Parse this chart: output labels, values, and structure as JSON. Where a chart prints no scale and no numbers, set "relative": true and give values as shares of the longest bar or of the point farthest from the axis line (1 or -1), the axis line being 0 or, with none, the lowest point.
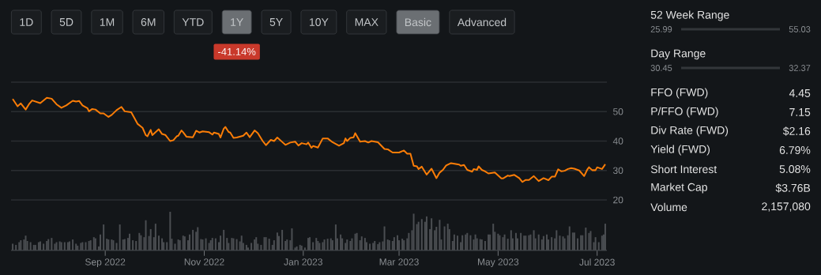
{
  "chart_data": [
    {
      "type": "line",
      "color": "#fb7d07",
      "grid": "y",
      "tick_labels": "y",
      "subtitle": "-41.14%",
      "annotations": [
        "1D",
        "5D",
        "1M",
        "6M",
        "YTD",
        "1Y",
        "5Y",
        "10Y",
        "MAX",
        "Basic",
        "Advanced"
      ],
      "xlim": [
        "2022-07-05",
        "2023-07-07"
      ],
      "ylim": [
        20,
        60
      ],
      "yticks": [
        20,
        30,
        40,
        50,
        {
          "value": 60,
          "label": null
        }
      ],
      "x": [
        "2022-07-06",
        "2022-07-09",
        "2022-07-11",
        "2022-07-14",
        "2022-07-16",
        "2022-07-18",
        "2022-07-23",
        "2022-07-27",
        "2022-07-30",
        "2022-08-02",
        "2022-08-05",
        "2022-08-08",
        "2022-08-12",
        "2022-08-14",
        "2022-08-16",
        "2022-08-18",
        "2022-08-21",
        "2022-08-22",
        "2022-08-24",
        "2022-08-26",
        "2022-08-29",
        "2022-08-31",
        "2022-09-03",
        "2022-09-05",
        "2022-09-08",
        "2022-09-11",
        "2022-09-13",
        "2022-09-17",
        "2022-09-21",
        "2022-09-24",
        "2022-09-26",
        "2022-09-27",
        "2022-09-29",
        "2022-09-30",
        "2022-10-04",
        "2022-10-06",
        "2022-10-08",
        "2022-10-11",
        "2022-10-13",
        "2022-10-15",
        "2022-10-16",
        "2022-10-18",
        "2022-10-19",
        "2022-10-21",
        "2022-10-25",
        "2022-10-27",
        "2022-10-29",
        "2022-10-31",
        "2022-11-04",
        "2022-11-06",
        "2022-11-07",
        "2022-11-10",
        "2022-11-11",
        "2022-11-13",
        "2022-11-14",
        "2022-11-16",
        "2022-11-17",
        "2022-11-19",
        "2022-11-21",
        "2022-11-23",
        "2022-11-25",
        "2022-11-27",
        "2022-11-29",
        "2022-12-02",
        "2022-12-04",
        "2022-12-07",
        "2022-12-09",
        "2022-12-12",
        "2022-12-14",
        "2022-12-16",
        "2022-12-19",
        "2022-12-21",
        "2022-12-24",
        "2022-12-27",
        "2022-12-29",
        "2022-12-31",
        "2023-01-03",
        "2023-01-04",
        "2023-01-06",
        "2023-01-07",
        "2023-01-09",
        "2023-01-10",
        "2023-01-13",
        "2023-01-16",
        "2023-01-19",
        "2023-01-23",
        "2023-01-26",
        "2023-01-27",
        "2023-01-28",
        "2023-01-30",
        "2023-02-01",
        "2023-02-02",
        "2023-02-05",
        "2023-02-08",
        "2023-02-10",
        "2023-02-12",
        "2023-02-16",
        "2023-02-20",
        "2023-02-22",
        "2023-02-25",
        "2023-03-01",
        "2023-03-04",
        "2023-03-06",
        "2023-03-08",
        "2023-03-10",
        "2023-03-12",
        "2023-03-13",
        "2023-03-15",
        "2023-03-18",
        "2023-03-21",
        "2023-03-24",
        "2023-03-26",
        "2023-03-28",
        "2023-03-30",
        "2023-04-02",
        "2023-04-07",
        "2023-04-08",
        "2023-04-10",
        "2023-04-12",
        "2023-04-15",
        "2023-04-16",
        "2023-04-18",
        "2023-04-19",
        "2023-04-21",
        "2023-04-23",
        "2023-04-25",
        "2023-04-29",
        "2023-05-03",
        "2023-05-04",
        "2023-05-07",
        "2023-05-08",
        "2023-05-11",
        "2023-05-14",
        "2023-05-16",
        "2023-05-18",
        "2023-05-20",
        "2023-05-23",
        "2023-05-26",
        "2023-05-29",
        "2023-06-01",
        "2023-06-03",
        "2023-06-05",
        "2023-06-07",
        "2023-06-09",
        "2023-06-11",
        "2023-06-13",
        "2023-06-15",
        "2023-06-17",
        "2023-06-20",
        "2023-06-23",
        "2023-06-25",
        "2023-06-26",
        "2023-06-28",
        "2023-06-30",
        "2023-07-01",
        "2023-07-04",
        "2023-07-06"
      ],
      "values": [
        54.3,
        51.8,
        52.8,
        50.7,
        52.5,
        53.8,
        52.9,
        54.7,
        54.4,
        52.5,
        51.3,
        52.1,
        53.7,
        53.4,
        53.6,
        52.1,
        51.2,
        50.1,
        50.9,
        50.7,
        49.4,
        49.4,
        48.2,
        48.9,
        50.5,
        51.6,
        50.1,
        49.8,
        45.8,
        44.5,
        42.0,
        41.6,
        43.8,
        42.0,
        44.0,
        42.4,
        42.1,
        40.0,
        40.3,
        41.6,
        41.8,
        43.6,
        43.0,
        41.5,
        41.3,
        43.5,
        42.9,
        43.3,
        43.0,
        42.2,
        42.9,
        42.4,
        41.2,
        44.2,
        44.8,
        43.1,
        42.9,
        41.1,
        41.2,
        41.5,
        41.8,
        42.9,
        41.3,
        43.6,
        42.7,
        40.0,
        38.6,
        40.4,
        40.0,
        41.2,
        39.7,
        38.7,
        39.5,
        39.8,
        38.5,
        39.3,
        38.9,
        39.5,
        37.7,
        38.3,
        38.0,
        37.8,
        40.9,
        40.9,
        39.6,
        38.4,
        39.3,
        40.9,
        40.0,
        41.1,
        41.3,
        42.7,
        39.8,
        40.0,
        39.5,
        40.0,
        39.6,
        37.3,
        37.2,
        36.1,
        36.1,
        36.8,
        35.7,
        35.7,
        31.6,
        31.4,
        30.5,
        31.3,
        28.6,
        30.6,
        27.4,
        29.3,
        30.2,
        31.7,
        32.5,
        32.0,
        31.6,
        31.9,
        30.2,
        29.6,
        30.5,
        30.2,
        31.4,
        30.2,
        29.7,
        29.0,
        29.3,
        27.3,
        27.3,
        28.3,
        28.1,
        28.5,
        27.4,
        26.1,
        26.8,
        26.8,
        28.1,
        26.4,
        27.4,
        26.7,
        27.9,
        27.9,
        30.4,
        29.7,
        29.9,
        30.5,
        30.8,
        30.6,
        30.0,
        28.1,
        30.4,
        31.1,
        30.1,
        30.1,
        31.1,
        30.5,
        32.1
      ]
    },
    {
      "type": "bar",
      "color": "#4b4e52",
      "relative": true,
      "tick_labels": "x",
      "xlim": [
        "2022-07-05",
        "2023-07-07"
      ],
      "xticks": [
        {
          "value": "2022-09-01",
          "label": "Sep 2022"
        },
        {
          "value": "2022-11-01",
          "label": "Nov 2022"
        },
        {
          "value": "2023-01-01",
          "label": "Jan 2023"
        },
        {
          "value": "2023-03-01",
          "label": "Mar 2023"
        },
        {
          "value": "2023-05-01",
          "label": "May 2023"
        },
        {
          "value": "2023-07-01",
          "label": "Jul 2023"
        }
      ],
      "x": [
        "2022-07-06",
        "2022-07-08",
        "2022-07-10",
        "2022-07-11",
        "2022-07-13",
        "2022-07-14",
        "2022-07-15",
        "2022-07-17",
        "2022-07-19",
        "2022-07-20",
        "2022-07-22",
        "2022-07-23",
        "2022-07-25",
        "2022-07-27",
        "2022-07-28",
        "2022-07-30",
        "2022-08-01",
        "2022-08-02",
        "2022-08-04",
        "2022-08-05",
        "2022-08-07",
        "2022-08-09",
        "2022-08-10",
        "2022-08-12",
        "2022-08-14",
        "2022-08-15",
        "2022-08-17",
        "2022-08-18",
        "2022-08-20",
        "2022-08-22",
        "2022-08-23",
        "2022-08-25",
        "2022-08-26",
        "2022-08-28",
        "2022-08-29",
        "2022-08-31",
        "2022-09-02",
        "2022-09-03",
        "2022-09-05",
        "2022-09-06",
        "2022-09-08",
        "2022-09-10",
        "2022-09-12",
        "2022-09-13",
        "2022-09-15",
        "2022-09-16",
        "2022-09-18",
        "2022-09-20",
        "2022-09-22",
        "2022-09-23",
        "2022-09-25",
        "2022-09-26",
        "2022-09-28",
        "2022-09-29",
        "2022-10-01",
        "2022-10-02",
        "2022-10-04",
        "2022-10-06",
        "2022-10-07",
        "2022-10-09",
        "2022-10-11",
        "2022-10-12",
        "2022-10-14",
        "2022-10-16",
        "2022-10-17",
        "2022-10-19",
        "2022-10-20",
        "2022-10-22",
        "2022-10-23",
        "2022-10-25",
        "2022-10-27",
        "2022-10-28",
        "2022-10-30",
        "2022-10-31",
        "2022-11-02",
        "2022-11-04",
        "2022-11-05",
        "2022-11-06",
        "2022-11-08",
        "2022-11-10",
        "2022-11-11",
        "2022-11-13",
        "2022-11-15",
        "2022-11-16",
        "2022-11-18",
        "2022-11-19",
        "2022-11-21",
        "2022-11-23",
        "2022-11-24",
        "2022-11-25",
        "2022-11-27",
        "2022-11-28",
        "2022-11-30",
        "2022-12-02",
        "2022-12-03",
        "2022-12-04",
        "2022-12-06",
        "2022-12-08",
        "2022-12-09",
        "2022-12-11",
        "2022-12-13",
        "2022-12-14",
        "2022-12-16",
        "2022-12-17",
        "2022-12-19",
        "2022-12-21",
        "2022-12-22",
        "2022-12-24",
        "2022-12-25",
        "2022-12-27",
        "2022-12-28",
        "2022-12-30",
        "2022-12-31",
        "2023-01-02",
        "2023-01-04",
        "2023-01-05",
        "2023-01-07",
        "2023-01-09",
        "2023-01-10",
        "2023-01-11",
        "2023-01-13",
        "2023-01-14",
        "2023-01-16",
        "2023-01-18",
        "2023-01-19",
        "2023-01-21",
        "2023-01-22",
        "2023-01-24",
        "2023-01-25",
        "2023-01-27",
        "2023-01-28",
        "2023-01-30",
        "2023-01-31",
        "2023-02-02",
        "2023-02-03",
        "2023-02-05",
        "2023-02-06",
        "2023-02-08",
        "2023-02-09",
        "2023-02-11",
        "2023-02-13",
        "2023-02-14",
        "2023-02-16",
        "2023-02-17",
        "2023-02-19",
        "2023-02-20",
        "2023-02-22",
        "2023-02-23",
        "2023-02-25",
        "2023-02-26",
        "2023-02-28",
        "2023-03-01",
        "2023-03-03",
        "2023-03-04",
        "2023-03-06",
        "2023-03-07",
        "2023-03-09",
        "2023-03-10",
        "2023-03-12",
        "2023-03-13",
        "2023-03-15",
        "2023-03-17",
        "2023-03-18",
        "2023-03-20",
        "2023-03-21",
        "2023-03-23",
        "2023-03-24",
        "2023-03-26",
        "2023-03-27",
        "2023-03-29",
        "2023-03-31",
        "2023-04-01",
        "2023-04-03",
        "2023-04-04",
        "2023-04-06",
        "2023-04-08",
        "2023-04-09",
        "2023-04-11",
        "2023-04-12",
        "2023-04-14",
        "2023-04-16",
        "2023-04-17",
        "2023-04-18",
        "2023-04-20",
        "2023-04-21",
        "2023-04-23",
        "2023-04-25",
        "2023-04-26",
        "2023-04-28",
        "2023-04-29",
        "2023-05-01",
        "2023-05-02",
        "2023-05-04",
        "2023-05-05",
        "2023-05-07",
        "2023-05-09",
        "2023-05-10",
        "2023-05-12",
        "2023-05-13",
        "2023-05-15",
        "2023-05-17",
        "2023-05-18",
        "2023-05-20",
        "2023-05-21",
        "2023-05-23",
        "2023-05-24",
        "2023-05-26",
        "2023-05-28",
        "2023-05-29",
        "2023-05-31",
        "2023-06-01",
        "2023-06-03",
        "2023-06-05",
        "2023-06-06",
        "2023-06-08",
        "2023-06-10",
        "2023-06-11",
        "2023-06-13",
        "2023-06-14",
        "2023-06-16",
        "2023-06-17",
        "2023-06-19",
        "2023-06-21",
        "2023-06-22",
        "2023-06-24",
        "2023-06-26",
        "2023-06-27",
        "2023-06-29",
        "2023-06-30",
        "2023-07-02",
        "2023-07-04",
        "2023-07-05",
        "2023-07-06"
      ],
      "values": [
        0.17,
        0.14,
        0.21,
        0.26,
        0.28,
        0.38,
        0.24,
        0.21,
        0.14,
        0.14,
        0.21,
        0.23,
        0.17,
        0.24,
        0.29,
        0.32,
        0.17,
        0.21,
        0.23,
        0.21,
        0.21,
        0.21,
        0.23,
        0.28,
        0.17,
        0.12,
        0.19,
        0.21,
        0.21,
        0.24,
        0.26,
        0.34,
        0.31,
        0.1,
        0.41,
        0.67,
        0.3,
        0.28,
        0.28,
        0.26,
        0.19,
        0.67,
        0.28,
        0.29,
        0.32,
        0.43,
        0.26,
        0.24,
        0.45,
        0.39,
        0.34,
        0.78,
        0.37,
        0.55,
        0.34,
        0.69,
        0.38,
        0.31,
        0.21,
        0.21,
        1,
        0.3,
        0.17,
        0.28,
        0.26,
        0.38,
        0.36,
        0.26,
        0.41,
        0.53,
        0.48,
        0.6,
        0.29,
        0.28,
        0.31,
        0.19,
        0.26,
        0.32,
        0.31,
        0.21,
        0.38,
        0.53,
        0.32,
        0.19,
        0.32,
        0.31,
        0.29,
        0.23,
        0.38,
        0.19,
        0.14,
        0.07,
        0.19,
        0.28,
        0.34,
        0.17,
        0.14,
        0.34,
        0.34,
        0.3,
        0.14,
        0.26,
        0.46,
        0.37,
        0.53,
        0.24,
        0.28,
        0.26,
        0.57,
        0.07,
        0.1,
        0.14,
        0.12,
        0.07,
        0.32,
        0.34,
        0.21,
        0.32,
        0.24,
        0.19,
        0.21,
        0.28,
        0.3,
        0.31,
        0.26,
        0.67,
        0.31,
        0.41,
        0.31,
        0.19,
        0.28,
        0.24,
        0.31,
        0.43,
        0.45,
        0.26,
        0.36,
        0.32,
        0.21,
        0.17,
        0.19,
        0.24,
        0.16,
        0.21,
        0.23,
        0.62,
        0.28,
        0.26,
        0.24,
        0.34,
        0.39,
        0.26,
        0.3,
        0.26,
        0.31,
        0.45,
        0.52,
        0.95,
        0.68,
        0.74,
        0.81,
        0.74,
        0.88,
        0.55,
        0.83,
        0.52,
        0.61,
        0.79,
        0.28,
        0.62,
        0.69,
        0.55,
        0.24,
        0.41,
        0.38,
        0.21,
        0.39,
        0.41,
        0.45,
        0.39,
        0.28,
        0.41,
        0.31,
        0.29,
        0.28,
        0.24,
        0.41,
        0.41,
        0.69,
        0.48,
        0.43,
        0.39,
        0.34,
        0.41,
        0.3,
        0.52,
        0.31,
        0.45,
        0.31,
        0.45,
        0.38,
        0.38,
        0.39,
        0.41,
        0.52,
        0.31,
        0.41,
        0.28,
        0.37,
        0.41,
        0.28,
        0.34,
        0.31,
        0.52,
        0.38,
        0.36,
        0.31,
        0.39,
        0.62,
        0.46,
        0.46,
        0.31,
        0.39,
        0.39,
        0.59,
        0.45,
        0.5,
        0.21,
        0.34,
        0.21,
        0.38,
        0.41,
        0.69
      ]
    },
    {
      "type": "other",
      "annotations": [
        "52 Week Range",
        "25.99",
        "55.03",
        "Day Range",
        "30.45",
        "32.37",
        "FFO (FWD)",
        "4.45",
        "P/FFO (FWD)",
        "7.15",
        "Div Rate (FWD)",
        "$2.16",
        "Yield (FWD)",
        "6.79%",
        "Short Interest",
        "5.08%",
        "Market Cap",
        "$3.76B",
        "Volume",
        "2,157,080"
      ]
    }
  ]
}
